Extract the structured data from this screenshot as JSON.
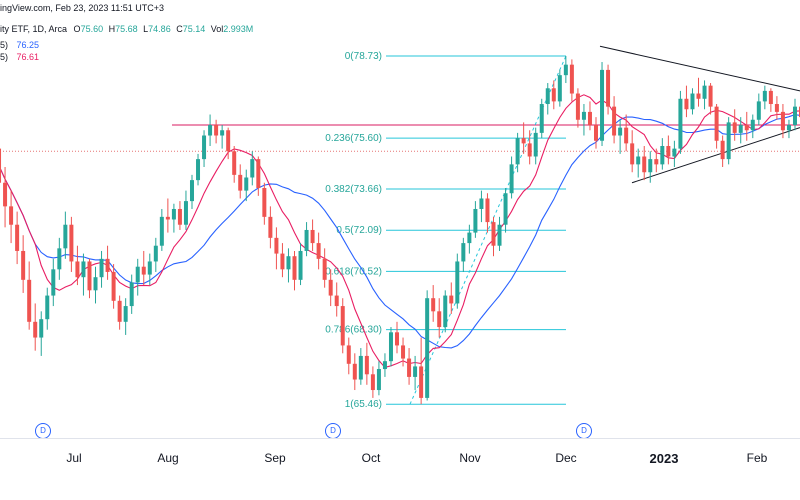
{
  "header": {
    "line1": "ingView.com, Feb 23, 2023 11:51 UTC+3",
    "line2_prefix": "ity ETF, 1D, Arca",
    "ohlc": {
      "o_label": "O",
      "o": "75.60",
      "h_label": "H",
      "h": "75.68",
      "l_label": "L",
      "l": "74.86",
      "c_label": "C",
      "c": "75.14",
      "vol_label": "Vol",
      "vol": "2.993M"
    },
    "ma1": {
      "label": "5)",
      "value": "76.25",
      "color": "#2962ff"
    },
    "ma2": {
      "label": "5)",
      "value": "76.61",
      "color": "#e91e63"
    }
  },
  "chart_data": {
    "type": "candlestick",
    "x_labels": [
      "Jul",
      "Aug",
      "Sep",
      "Oct",
      "Nov",
      "Dec",
      "2023",
      "Feb"
    ],
    "fib_levels": [
      {
        "ratio": "0",
        "price": 78.73,
        "label": "0(78.73)"
      },
      {
        "ratio": "0.236",
        "price": 75.6,
        "label": "0.236(75.60)"
      },
      {
        "ratio": "0.382",
        "price": 73.66,
        "label": "0.382(73.66)"
      },
      {
        "ratio": "0.5",
        "price": 72.09,
        "label": "0.5(72.09)"
      },
      {
        "ratio": "0.618",
        "price": 70.52,
        "label": "0.618(70.52)"
      },
      {
        "ratio": "0.786",
        "price": 68.3,
        "label": "0.786(68.30)"
      },
      {
        "ratio": "1",
        "price": 65.46,
        "label": "1(65.46)"
      }
    ],
    "horizontal_line": 76.1,
    "dotted_line": 75.1,
    "dividend_markers": [
      "D",
      "D",
      "D"
    ],
    "candles": [
      [
        76.5,
        77.0,
        74.8,
        75.2
      ],
      [
        75.2,
        75.6,
        73.5,
        73.9
      ],
      [
        73.9,
        74.5,
        72.2,
        73.0
      ],
      [
        73.0,
        73.6,
        71.6,
        72.3
      ],
      [
        72.3,
        72.8,
        70.8,
        71.3
      ],
      [
        71.3,
        71.9,
        69.7,
        70.2
      ],
      [
        70.2,
        70.9,
        68.3,
        68.6
      ],
      [
        68.6,
        69.3,
        67.5,
        68.0
      ],
      [
        68.0,
        69.0,
        67.3,
        68.7
      ],
      [
        68.7,
        69.9,
        68.3,
        69.6
      ],
      [
        69.6,
        71.0,
        69.2,
        70.6
      ],
      [
        70.6,
        71.8,
        70.2,
        71.4
      ],
      [
        71.4,
        72.8,
        71.0,
        72.3
      ],
      [
        72.3,
        72.6,
        70.5,
        70.9
      ],
      [
        70.9,
        71.5,
        70.0,
        70.3
      ],
      [
        70.3,
        71.2,
        69.6,
        70.9
      ],
      [
        70.9,
        71.0,
        69.5,
        69.8
      ],
      [
        69.8,
        70.7,
        69.3,
        70.3
      ],
      [
        70.3,
        71.3,
        69.9,
        71.0
      ],
      [
        71.0,
        71.5,
        70.2,
        70.5
      ],
      [
        70.5,
        70.8,
        69.1,
        69.4
      ],
      [
        69.4,
        69.6,
        68.3,
        68.6
      ],
      [
        68.6,
        69.5,
        68.1,
        69.2
      ],
      [
        69.2,
        70.4,
        68.9,
        70.1
      ],
      [
        70.1,
        71.0,
        69.6,
        70.7
      ],
      [
        70.7,
        71.3,
        70.0,
        70.4
      ],
      [
        70.4,
        71.2,
        70.0,
        70.9
      ],
      [
        70.9,
        71.8,
        70.5,
        71.5
      ],
      [
        71.5,
        72.9,
        71.3,
        72.6
      ],
      [
        72.6,
        73.3,
        72.0,
        72.5
      ],
      [
        72.5,
        73.1,
        72.0,
        72.9
      ],
      [
        72.9,
        73.2,
        72.1,
        72.3
      ],
      [
        72.3,
        73.6,
        72.1,
        73.2
      ],
      [
        73.2,
        74.2,
        72.9,
        74.0
      ],
      [
        74.0,
        75.0,
        73.8,
        74.8
      ],
      [
        74.8,
        75.9,
        74.5,
        75.7
      ],
      [
        75.7,
        76.5,
        75.3,
        76.1
      ],
      [
        76.1,
        76.3,
        75.4,
        75.7
      ],
      [
        75.7,
        76.1,
        75.2,
        75.9
      ],
      [
        75.9,
        76.0,
        74.8,
        75.1
      ],
      [
        75.1,
        75.3,
        73.9,
        74.2
      ],
      [
        74.2,
        74.6,
        73.3,
        73.6
      ],
      [
        73.6,
        74.4,
        73.2,
        74.1
      ],
      [
        74.1,
        75.1,
        73.8,
        74.8
      ],
      [
        74.8,
        74.9,
        73.4,
        73.7
      ],
      [
        73.7,
        73.9,
        72.3,
        72.6
      ],
      [
        72.6,
        73.0,
        71.4,
        71.8
      ],
      [
        71.8,
        72.2,
        70.6,
        71.2
      ],
      [
        71.2,
        71.6,
        70.3,
        70.6
      ],
      [
        70.6,
        71.4,
        70.1,
        71.1
      ],
      [
        71.1,
        71.3,
        69.8,
        70.2
      ],
      [
        70.2,
        71.6,
        70.0,
        71.3
      ],
      [
        71.3,
        72.4,
        71.1,
        72.1
      ],
      [
        72.1,
        72.5,
        71.3,
        71.6
      ],
      [
        71.6,
        72.0,
        70.6,
        71.0
      ],
      [
        71.0,
        71.4,
        69.9,
        70.2
      ],
      [
        70.2,
        70.6,
        69.2,
        69.6
      ],
      [
        69.6,
        70.1,
        68.8,
        69.2
      ],
      [
        69.2,
        69.5,
        67.4,
        67.7
      ],
      [
        67.7,
        68.0,
        66.6,
        67.0
      ],
      [
        67.0,
        67.4,
        66.0,
        66.4
      ],
      [
        66.4,
        67.6,
        66.2,
        67.3
      ],
      [
        67.3,
        67.8,
        66.2,
        66.6
      ],
      [
        66.6,
        66.9,
        65.7,
        66.0
      ],
      [
        66.0,
        67.1,
        65.8,
        66.8
      ],
      [
        66.8,
        67.4,
        66.5,
        67.1
      ],
      [
        67.1,
        68.4,
        66.9,
        68.2
      ],
      [
        68.2,
        68.6,
        67.4,
        67.7
      ],
      [
        67.7,
        68.0,
        66.9,
        67.2
      ],
      [
        67.2,
        67.6,
        66.2,
        66.5
      ],
      [
        66.5,
        67.3,
        66.0,
        66.9
      ],
      [
        66.9,
        68.0,
        65.46,
        65.7
      ],
      [
        65.7,
        69.8,
        65.6,
        69.5
      ],
      [
        69.5,
        70.0,
        68.6,
        69.0
      ],
      [
        69.0,
        69.5,
        68.0,
        68.4
      ],
      [
        68.4,
        69.8,
        68.2,
        69.6
      ],
      [
        69.6,
        70.1,
        68.9,
        69.3
      ],
      [
        69.3,
        71.2,
        69.1,
        70.9
      ],
      [
        70.9,
        71.8,
        70.5,
        71.6
      ],
      [
        71.6,
        72.3,
        71.2,
        72.0
      ],
      [
        72.0,
        73.2,
        71.8,
        72.9
      ],
      [
        72.9,
        73.6,
        72.4,
        73.3
      ],
      [
        73.3,
        73.5,
        72.0,
        72.4
      ],
      [
        72.4,
        72.6,
        71.1,
        71.5
      ],
      [
        71.5,
        72.6,
        71.3,
        72.3
      ],
      [
        72.3,
        73.7,
        72.0,
        73.5
      ],
      [
        73.5,
        74.9,
        73.3,
        74.6
      ],
      [
        74.6,
        75.8,
        74.3,
        75.6
      ],
      [
        75.6,
        76.2,
        75.0,
        75.4
      ],
      [
        75.4,
        75.9,
        74.6,
        74.9
      ],
      [
        74.9,
        76.0,
        74.6,
        75.8
      ],
      [
        75.8,
        77.1,
        75.6,
        76.9
      ],
      [
        76.9,
        77.7,
        76.5,
        77.5
      ],
      [
        77.5,
        77.8,
        76.7,
        77.0
      ],
      [
        77.0,
        78.2,
        76.8,
        78.0
      ],
      [
        78.0,
        78.73,
        77.7,
        78.4
      ],
      [
        78.4,
        78.6,
        77.0,
        77.3
      ],
      [
        77.3,
        77.5,
        76.0,
        76.3
      ],
      [
        76.3,
        76.9,
        75.7,
        76.6
      ],
      [
        76.6,
        77.0,
        75.9,
        76.1
      ],
      [
        76.1,
        76.4,
        75.2,
        75.5
      ],
      [
        75.5,
        78.5,
        75.3,
        78.2
      ],
      [
        78.2,
        78.4,
        76.5,
        76.8
      ],
      [
        76.8,
        77.2,
        75.4,
        75.7
      ],
      [
        75.7,
        76.3,
        75.0,
        76.0
      ],
      [
        76.0,
        76.5,
        75.1,
        75.4
      ],
      [
        75.4,
        75.9,
        74.3,
        74.6
      ],
      [
        74.6,
        75.2,
        74.1,
        74.9
      ],
      [
        74.9,
        75.3,
        74.0,
        74.3
      ],
      [
        74.3,
        75.1,
        73.9,
        74.8
      ],
      [
        74.8,
        75.2,
        74.3,
        74.6
      ],
      [
        74.6,
        75.6,
        74.4,
        75.3
      ],
      [
        75.3,
        75.7,
        74.6,
        74.9
      ],
      [
        74.9,
        75.5,
        74.5,
        75.2
      ],
      [
        75.2,
        77.4,
        75.0,
        77.1
      ],
      [
        77.1,
        77.6,
        76.4,
        76.7
      ],
      [
        76.7,
        77.5,
        76.5,
        77.3
      ],
      [
        77.3,
        77.9,
        76.8,
        77.1
      ],
      [
        77.1,
        77.8,
        76.7,
        77.6
      ],
      [
        77.6,
        77.7,
        76.5,
        76.8
      ],
      [
        76.8,
        76.9,
        75.2,
        75.5
      ],
      [
        75.5,
        75.7,
        74.5,
        74.8
      ],
      [
        74.8,
        76.4,
        74.6,
        76.2
      ],
      [
        76.2,
        76.7,
        75.5,
        75.8
      ],
      [
        75.8,
        76.4,
        75.4,
        76.1
      ],
      [
        76.1,
        76.6,
        75.5,
        75.9
      ],
      [
        75.9,
        76.5,
        75.6,
        76.3
      ],
      [
        76.3,
        77.3,
        76.1,
        77.0
      ],
      [
        77.0,
        77.6,
        76.7,
        77.4
      ],
      [
        77.4,
        77.5,
        76.6,
        76.9
      ],
      [
        76.9,
        77.2,
        76.3,
        76.6
      ],
      [
        76.6,
        76.9,
        75.6,
        75.9
      ],
      [
        75.9,
        76.3,
        75.6,
        76.1
      ],
      [
        76.1,
        77.1,
        75.9,
        76.8
      ],
      [
        76.8,
        77.1,
        76.0,
        76.4
      ],
      [
        75.6,
        75.68,
        74.86,
        75.14
      ]
    ]
  }
}
